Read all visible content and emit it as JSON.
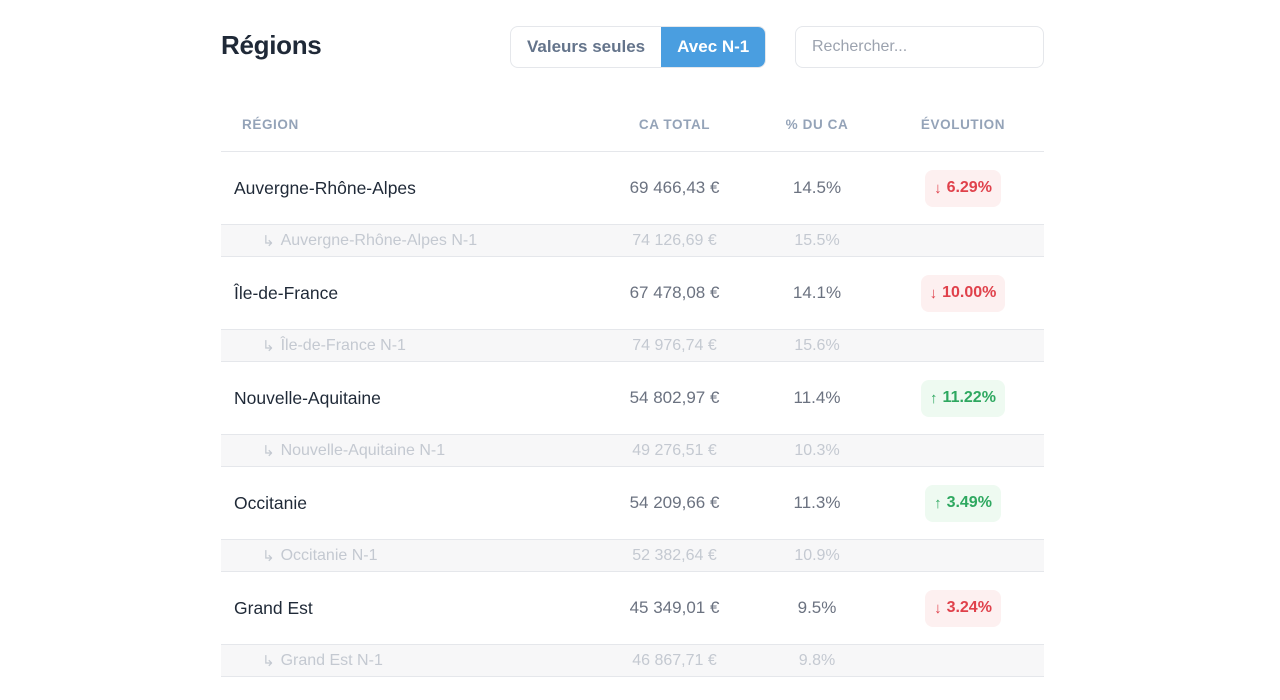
{
  "header": {
    "title": "Régions",
    "toggle": {
      "option_values_only": "Valeurs seules",
      "option_with_n1": "Avec N-1",
      "active": "Avec N-1"
    },
    "search": {
      "placeholder": "Rechercher...",
      "value": ""
    }
  },
  "table": {
    "columns": {
      "region": "RÉGION",
      "ca_total": "CA TOTAL",
      "pct_ca": "% DU CA",
      "evolution": "ÉVOLUTION"
    },
    "rows": [
      {
        "name": "Auvergne-Rhône-Alpes",
        "ca": "69 466,43 €",
        "pct": "14.5%",
        "evo": "6.29%",
        "evo_dir": "down",
        "evo_arrow": "↓",
        "n1": {
          "glyph": "↳",
          "name": "Auvergne-Rhône-Alpes N-1",
          "ca": "74 126,69 €",
          "pct": "15.5%"
        }
      },
      {
        "name": "Île-de-France",
        "ca": "67 478,08 €",
        "pct": "14.1%",
        "evo": "10.00%",
        "evo_dir": "down",
        "evo_arrow": "↓",
        "n1": {
          "glyph": "↳",
          "name": "Île-de-France N-1",
          "ca": "74 976,74 €",
          "pct": "15.6%"
        }
      },
      {
        "name": "Nouvelle-Aquitaine",
        "ca": "54 802,97 €",
        "pct": "11.4%",
        "evo": "11.22%",
        "evo_dir": "up",
        "evo_arrow": "↑",
        "n1": {
          "glyph": "↳",
          "name": "Nouvelle-Aquitaine N-1",
          "ca": "49 276,51 €",
          "pct": "10.3%"
        }
      },
      {
        "name": "Occitanie",
        "ca": "54 209,66 €",
        "pct": "11.3%",
        "evo": "3.49%",
        "evo_dir": "up",
        "evo_arrow": "↑",
        "n1": {
          "glyph": "↳",
          "name": "Occitanie N-1",
          "ca": "52 382,64 €",
          "pct": "10.9%"
        }
      },
      {
        "name": "Grand Est",
        "ca": "45 349,01 €",
        "pct": "9.5%",
        "evo": "3.24%",
        "evo_dir": "down",
        "evo_arrow": "↓",
        "n1": {
          "glyph": "↳",
          "name": "Grand Est N-1",
          "ca": "46 867,71 €",
          "pct": "9.8%"
        }
      }
    ]
  },
  "colors": {
    "accent": "#4a9ee0",
    "down_text": "#e0414b",
    "down_bg": "#fdf0f0",
    "up_text": "#2ea860",
    "up_bg": "#eefaf1"
  }
}
